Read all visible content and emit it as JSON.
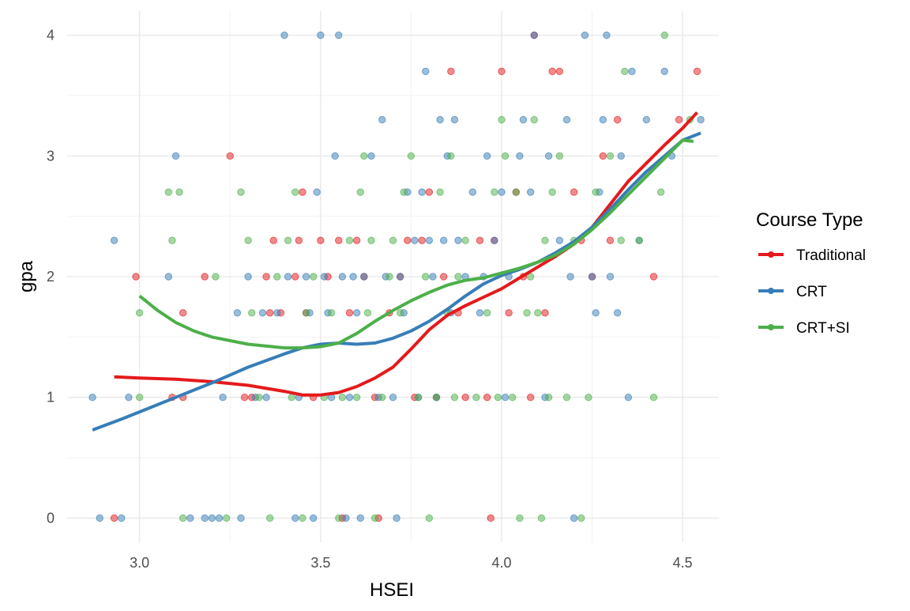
{
  "chart_data": {
    "type": "scatter",
    "xlabel": "HSEI",
    "ylabel": "gpa",
    "xlim": [
      2.8,
      4.6
    ],
    "ylim": [
      -0.2,
      4.2
    ],
    "x_ticks": [
      3.0,
      3.5,
      4.0,
      4.5
    ],
    "x_tick_labels": [
      "3.0",
      "3.5",
      "4.0",
      "4.5"
    ],
    "y_ticks": [
      0,
      1,
      2,
      3,
      4
    ],
    "y_tick_labels": [
      "0",
      "1",
      "2",
      "3",
      "4"
    ],
    "grid": true,
    "theme": "minimal",
    "legend": {
      "title": "Course Type",
      "position": "right",
      "entries": [
        "Traditional",
        "CRT",
        "CRT+SI"
      ]
    },
    "series": [
      {
        "name": "Traditional",
        "color": "#E41A1C",
        "points": [
          [
            2.93,
            0
          ],
          [
            2.99,
            2
          ],
          [
            3.09,
            1
          ],
          [
            3.12,
            1
          ],
          [
            3.12,
            1.7
          ],
          [
            3.18,
            2
          ],
          [
            3.25,
            3
          ],
          [
            3.29,
            1
          ],
          [
            3.31,
            1
          ],
          [
            3.35,
            2
          ],
          [
            3.36,
            1.7
          ],
          [
            3.37,
            2.3
          ],
          [
            3.39,
            1.7
          ],
          [
            3.43,
            2
          ],
          [
            3.44,
            2.3
          ],
          [
            3.45,
            2.7
          ],
          [
            3.46,
            1.7
          ],
          [
            3.48,
            1
          ],
          [
            3.5,
            2.3
          ],
          [
            3.52,
            2
          ],
          [
            3.55,
            2.3
          ],
          [
            3.56,
            0
          ],
          [
            3.58,
            1.7
          ],
          [
            3.6,
            2.3
          ],
          [
            3.62,
            2
          ],
          [
            3.65,
            1
          ],
          [
            3.66,
            0
          ],
          [
            3.69,
            1.7
          ],
          [
            3.72,
            2
          ],
          [
            3.74,
            2.3
          ],
          [
            3.76,
            1
          ],
          [
            3.78,
            2.3
          ],
          [
            3.8,
            2.7
          ],
          [
            3.82,
            1
          ],
          [
            3.84,
            2
          ],
          [
            3.86,
            3.7
          ],
          [
            3.88,
            1.7
          ],
          [
            3.9,
            1
          ],
          [
            3.94,
            2.3
          ],
          [
            3.96,
            1
          ],
          [
            3.97,
            0
          ],
          [
            3.98,
            2.3
          ],
          [
            4.0,
            3.7
          ],
          [
            4.02,
            1.7
          ],
          [
            4.04,
            2.7
          ],
          [
            4.06,
            2
          ],
          [
            4.08,
            1
          ],
          [
            4.09,
            4
          ],
          [
            4.12,
            1.7
          ],
          [
            4.14,
            3.7
          ],
          [
            4.16,
            3.7
          ],
          [
            4.2,
            2.7
          ],
          [
            4.22,
            2.3
          ],
          [
            4.25,
            2
          ],
          [
            4.28,
            3
          ],
          [
            4.3,
            2.3
          ],
          [
            4.32,
            3.3
          ],
          [
            4.42,
            2
          ],
          [
            4.49,
            3.3
          ],
          [
            4.54,
            3.7
          ]
        ],
        "fit": [
          [
            2.93,
            1.17
          ],
          [
            3.0,
            1.16
          ],
          [
            3.1,
            1.15
          ],
          [
            3.2,
            1.13
          ],
          [
            3.3,
            1.1
          ],
          [
            3.4,
            1.05
          ],
          [
            3.45,
            1.02
          ],
          [
            3.5,
            1.02
          ],
          [
            3.55,
            1.04
          ],
          [
            3.6,
            1.09
          ],
          [
            3.65,
            1.16
          ],
          [
            3.7,
            1.25
          ],
          [
            3.75,
            1.4
          ],
          [
            3.8,
            1.56
          ],
          [
            3.85,
            1.68
          ],
          [
            3.9,
            1.76
          ],
          [
            3.95,
            1.83
          ],
          [
            4.0,
            1.9
          ],
          [
            4.05,
            1.99
          ],
          [
            4.1,
            2.08
          ],
          [
            4.15,
            2.17
          ],
          [
            4.2,
            2.27
          ],
          [
            4.25,
            2.41
          ],
          [
            4.3,
            2.6
          ],
          [
            4.35,
            2.79
          ],
          [
            4.4,
            2.94
          ],
          [
            4.45,
            3.09
          ],
          [
            4.5,
            3.23
          ],
          [
            4.54,
            3.36
          ]
        ]
      },
      {
        "name": "CRT",
        "color": "#377EB8",
        "points": [
          [
            2.87,
            1
          ],
          [
            2.89,
            0
          ],
          [
            2.93,
            2.3
          ],
          [
            2.95,
            0
          ],
          [
            2.97,
            1
          ],
          [
            3.08,
            2
          ],
          [
            3.1,
            3
          ],
          [
            3.14,
            0
          ],
          [
            3.18,
            0
          ],
          [
            3.2,
            0
          ],
          [
            3.22,
            0
          ],
          [
            3.23,
            1
          ],
          [
            3.27,
            1.7
          ],
          [
            3.28,
            0
          ],
          [
            3.3,
            2
          ],
          [
            3.32,
            1
          ],
          [
            3.34,
            1.7
          ],
          [
            3.35,
            1
          ],
          [
            3.38,
            1.7
          ],
          [
            3.4,
            4
          ],
          [
            3.41,
            2
          ],
          [
            3.43,
            0
          ],
          [
            3.44,
            1
          ],
          [
            3.46,
            2
          ],
          [
            3.47,
            1.7
          ],
          [
            3.48,
            0
          ],
          [
            3.49,
            2.7
          ],
          [
            3.5,
            4
          ],
          [
            3.51,
            2
          ],
          [
            3.52,
            1.7
          ],
          [
            3.53,
            1
          ],
          [
            3.54,
            3
          ],
          [
            3.55,
            4
          ],
          [
            3.56,
            2
          ],
          [
            3.57,
            0
          ],
          [
            3.58,
            1
          ],
          [
            3.59,
            2
          ],
          [
            3.6,
            1.7
          ],
          [
            3.61,
            0
          ],
          [
            3.62,
            2
          ],
          [
            3.64,
            3
          ],
          [
            3.66,
            1
          ],
          [
            3.67,
            3.3
          ],
          [
            3.68,
            2
          ],
          [
            3.7,
            1
          ],
          [
            3.71,
            0
          ],
          [
            3.72,
            2
          ],
          [
            3.73,
            1.7
          ],
          [
            3.74,
            2.7
          ],
          [
            3.76,
            2.3
          ],
          [
            3.77,
            1
          ],
          [
            3.78,
            2.7
          ],
          [
            3.79,
            3.7
          ],
          [
            3.8,
            2.3
          ],
          [
            3.81,
            2
          ],
          [
            3.82,
            1
          ],
          [
            3.83,
            3.3
          ],
          [
            3.84,
            2.3
          ],
          [
            3.85,
            3
          ],
          [
            3.86,
            1.7
          ],
          [
            3.87,
            3.3
          ],
          [
            3.88,
            2.3
          ],
          [
            3.9,
            2
          ],
          [
            3.92,
            2.7
          ],
          [
            3.94,
            1.7
          ],
          [
            3.95,
            2
          ],
          [
            3.96,
            3
          ],
          [
            3.98,
            2.3
          ],
          [
            4.0,
            2.7
          ],
          [
            4.01,
            1
          ],
          [
            4.02,
            2
          ],
          [
            4.05,
            3
          ],
          [
            4.06,
            3.3
          ],
          [
            4.08,
            2.7
          ],
          [
            4.09,
            4
          ],
          [
            4.12,
            1
          ],
          [
            4.13,
            3
          ],
          [
            4.16,
            2.3
          ],
          [
            4.18,
            3.3
          ],
          [
            4.19,
            2
          ],
          [
            4.2,
            0
          ],
          [
            4.23,
            4
          ],
          [
            4.25,
            2
          ],
          [
            4.26,
            1.7
          ],
          [
            4.27,
            2.7
          ],
          [
            4.28,
            3.3
          ],
          [
            4.29,
            4
          ],
          [
            4.3,
            2
          ],
          [
            4.32,
            1.7
          ],
          [
            4.33,
            3
          ],
          [
            4.35,
            1
          ],
          [
            4.36,
            3.7
          ],
          [
            4.38,
            2.3
          ],
          [
            4.4,
            3.3
          ],
          [
            4.45,
            3.7
          ],
          [
            4.47,
            3
          ],
          [
            4.55,
            3.3
          ]
        ],
        "fit": [
          [
            2.87,
            0.73
          ],
          [
            2.95,
            0.82
          ],
          [
            3.0,
            0.88
          ],
          [
            3.1,
            1.0
          ],
          [
            3.2,
            1.12
          ],
          [
            3.3,
            1.25
          ],
          [
            3.4,
            1.36
          ],
          [
            3.45,
            1.41
          ],
          [
            3.5,
            1.44
          ],
          [
            3.55,
            1.45
          ],
          [
            3.6,
            1.44
          ],
          [
            3.65,
            1.45
          ],
          [
            3.7,
            1.49
          ],
          [
            3.75,
            1.55
          ],
          [
            3.8,
            1.63
          ],
          [
            3.85,
            1.73
          ],
          [
            3.9,
            1.84
          ],
          [
            3.95,
            1.94
          ],
          [
            4.0,
            2.01
          ],
          [
            4.05,
            2.06
          ],
          [
            4.1,
            2.12
          ],
          [
            4.15,
            2.2
          ],
          [
            4.2,
            2.29
          ],
          [
            4.25,
            2.41
          ],
          [
            4.3,
            2.56
          ],
          [
            4.35,
            2.72
          ],
          [
            4.4,
            2.87
          ],
          [
            4.45,
            3.0
          ],
          [
            4.5,
            3.13
          ],
          [
            4.55,
            3.19
          ]
        ]
      },
      {
        "name": "CRT+SI",
        "color": "#4DAF4A",
        "points": [
          [
            3.0,
            1.7
          ],
          [
            3.0,
            1
          ],
          [
            3.08,
            2.7
          ],
          [
            3.09,
            2.3
          ],
          [
            3.11,
            2.7
          ],
          [
            3.12,
            0
          ],
          [
            3.21,
            2
          ],
          [
            3.24,
            0
          ],
          [
            3.28,
            2.7
          ],
          [
            3.3,
            2.3
          ],
          [
            3.31,
            1.7
          ],
          [
            3.33,
            1
          ],
          [
            3.36,
            0
          ],
          [
            3.38,
            2
          ],
          [
            3.41,
            2.3
          ],
          [
            3.42,
            1
          ],
          [
            3.43,
            2.7
          ],
          [
            3.45,
            0
          ],
          [
            3.46,
            1.7
          ],
          [
            3.48,
            2
          ],
          [
            3.51,
            1
          ],
          [
            3.53,
            1.7
          ],
          [
            3.55,
            0
          ],
          [
            3.56,
            1
          ],
          [
            3.58,
            2.3
          ],
          [
            3.6,
            1
          ],
          [
            3.61,
            2.7
          ],
          [
            3.62,
            3
          ],
          [
            3.63,
            1.7
          ],
          [
            3.64,
            2.3
          ],
          [
            3.65,
            0
          ],
          [
            3.67,
            1
          ],
          [
            3.69,
            2
          ],
          [
            3.7,
            2.3
          ],
          [
            3.72,
            1.7
          ],
          [
            3.73,
            2.7
          ],
          [
            3.75,
            3
          ],
          [
            3.77,
            1
          ],
          [
            3.79,
            2
          ],
          [
            3.8,
            0
          ],
          [
            3.82,
            1
          ],
          [
            3.83,
            2.7
          ],
          [
            3.85,
            1.7
          ],
          [
            3.86,
            3
          ],
          [
            3.87,
            1
          ],
          [
            3.88,
            2
          ],
          [
            3.9,
            2.3
          ],
          [
            3.93,
            1
          ],
          [
            3.96,
            1.7
          ],
          [
            3.98,
            2.7
          ],
          [
            3.99,
            1
          ],
          [
            4.0,
            3.3
          ],
          [
            4.01,
            3
          ],
          [
            4.03,
            1
          ],
          [
            4.04,
            2.7
          ],
          [
            4.05,
            0
          ],
          [
            4.07,
            1.7
          ],
          [
            4.08,
            2
          ],
          [
            4.09,
            3.3
          ],
          [
            4.1,
            1.7
          ],
          [
            4.11,
            0
          ],
          [
            4.12,
            2.3
          ],
          [
            4.13,
            1
          ],
          [
            4.14,
            2.7
          ],
          [
            4.16,
            3
          ],
          [
            4.18,
            1
          ],
          [
            4.2,
            2.3
          ],
          [
            4.22,
            0
          ],
          [
            4.24,
            1
          ],
          [
            4.26,
            2.7
          ],
          [
            4.3,
            3
          ],
          [
            4.33,
            2.3
          ],
          [
            4.34,
            3.7
          ],
          [
            4.38,
            2.3
          ],
          [
            4.42,
            1
          ],
          [
            4.44,
            2.7
          ],
          [
            4.45,
            4
          ],
          [
            4.52,
            3.3
          ]
        ],
        "fit": [
          [
            3.0,
            1.84
          ],
          [
            3.05,
            1.72
          ],
          [
            3.1,
            1.62
          ],
          [
            3.15,
            1.55
          ],
          [
            3.2,
            1.5
          ],
          [
            3.3,
            1.44
          ],
          [
            3.4,
            1.41
          ],
          [
            3.45,
            1.41
          ],
          [
            3.5,
            1.42
          ],
          [
            3.55,
            1.45
          ],
          [
            3.6,
            1.53
          ],
          [
            3.65,
            1.63
          ],
          [
            3.7,
            1.72
          ],
          [
            3.75,
            1.8
          ],
          [
            3.8,
            1.87
          ],
          [
            3.85,
            1.93
          ],
          [
            3.9,
            1.97
          ],
          [
            3.95,
            1.99
          ],
          [
            4.0,
            2.03
          ],
          [
            4.05,
            2.07
          ],
          [
            4.1,
            2.12
          ],
          [
            4.15,
            2.18
          ],
          [
            4.2,
            2.27
          ],
          [
            4.25,
            2.39
          ],
          [
            4.3,
            2.53
          ],
          [
            4.35,
            2.68
          ],
          [
            4.4,
            2.83
          ],
          [
            4.45,
            2.98
          ],
          [
            4.5,
            3.13
          ],
          [
            4.53,
            3.12
          ]
        ]
      }
    ]
  }
}
